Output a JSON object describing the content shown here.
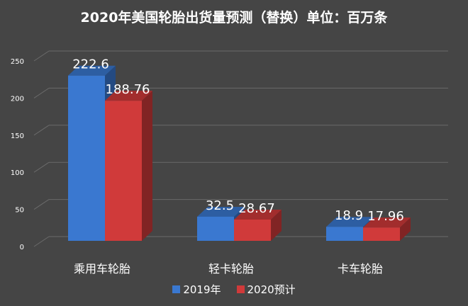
{
  "title": "2020年美国轮胎出货量预测（替换）单位：百万条",
  "colors": {
    "background": "#454545",
    "grid": "#6a6a6a",
    "text": "#ffffff",
    "series_2019": "#3a78d0",
    "series_2020": "#d03a3a"
  },
  "chart_data": {
    "type": "bar",
    "title": "2020年美国轮胎出货量预测（替换）单位：百万条",
    "categories": [
      "乘用车轮胎",
      "轻卡轮胎",
      "卡车轮胎"
    ],
    "series": [
      {
        "name": "2019年",
        "values": [
          222.6,
          32.5,
          18.9
        ],
        "labels": [
          "222.6",
          "32.5",
          "18.9"
        ]
      },
      {
        "name": "2020预计",
        "values": [
          188.76,
          28.67,
          17.96
        ],
        "labels": [
          "188.76",
          "28.67",
          "17.96"
        ]
      }
    ],
    "yticks": [
      "0",
      "50",
      "100",
      "150",
      "200",
      "250"
    ],
    "ylim": [
      0,
      250
    ],
    "xlabel": "",
    "ylabel": "",
    "grid": true,
    "legend_position": "bottom",
    "style": "3d-clustered-bar"
  },
  "legend": {
    "items": [
      {
        "label": "2019年",
        "color": "#3a78d0"
      },
      {
        "label": "2020预计",
        "color": "#d03a3a"
      }
    ]
  }
}
